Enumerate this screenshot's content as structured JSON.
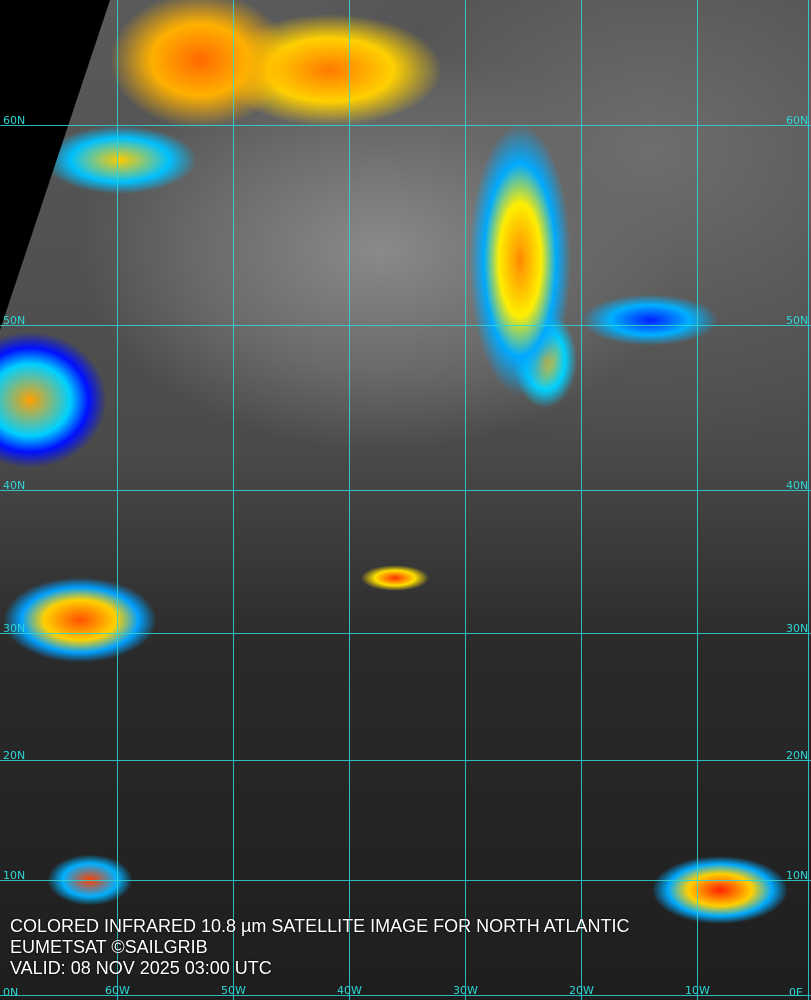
{
  "caption": {
    "title": "COLORED INFRARED 10.8 µm SATELLITE IMAGE FOR NORTH ATLANTIC",
    "credit": "EUMETSAT ©SAILGRIB",
    "valid": "VALID:  08 NOV 2025 03:00 UTC"
  },
  "grid": {
    "color": "#2fd6d6",
    "lat_labels": [
      "60N",
      "50N",
      "40N",
      "30N",
      "20N",
      "10N",
      "0N"
    ],
    "lon_labels": [
      "60W",
      "50W",
      "40W",
      "30W",
      "20W",
      "10W",
      "0E"
    ]
  },
  "colors": {
    "cold_top": "#ff3000",
    "mid": "#ffe000",
    "warm": "#00c0ff",
    "warmest": "#0010ff"
  }
}
